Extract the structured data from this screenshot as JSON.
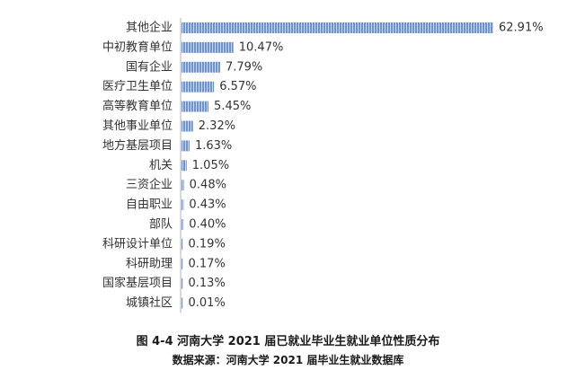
{
  "caption": "图 4-4 河南大学 2021 届已就业毕业生就业单位性质分布",
  "source": "数据来源：河南大学 2021 届毕业生就业数据库",
  "colors": {
    "bar_fill": "#6f93cf",
    "bar_stripe": "#c9d8f0",
    "axis": "#b3b3b3",
    "text": "#333333"
  },
  "chart_data": {
    "type": "bar",
    "orientation": "horizontal",
    "categories": [
      "其他企业",
      "中初教育单位",
      "国有企业",
      "医疗卫生单位",
      "高等教育单位",
      "其他事业单位",
      "地方基层项目",
      "机关",
      "三资企业",
      "自由职业",
      "部队",
      "科研设计单位",
      "科研助理",
      "国家基层项目",
      "城镇社区"
    ],
    "values": [
      62.91,
      10.47,
      7.79,
      6.57,
      5.45,
      2.32,
      1.63,
      1.05,
      0.48,
      0.43,
      0.4,
      0.19,
      0.17,
      0.13,
      0.01
    ],
    "value_labels": [
      "62.91%",
      "10.47%",
      "7.79%",
      "6.57%",
      "5.45%",
      "2.32%",
      "1.63%",
      "1.05%",
      "0.48%",
      "0.43%",
      "0.40%",
      "0.19%",
      "0.17%",
      "0.13%",
      "0.01%"
    ],
    "unit": "%",
    "xlim": [
      0,
      62.91
    ],
    "grid": false,
    "legend": false
  }
}
